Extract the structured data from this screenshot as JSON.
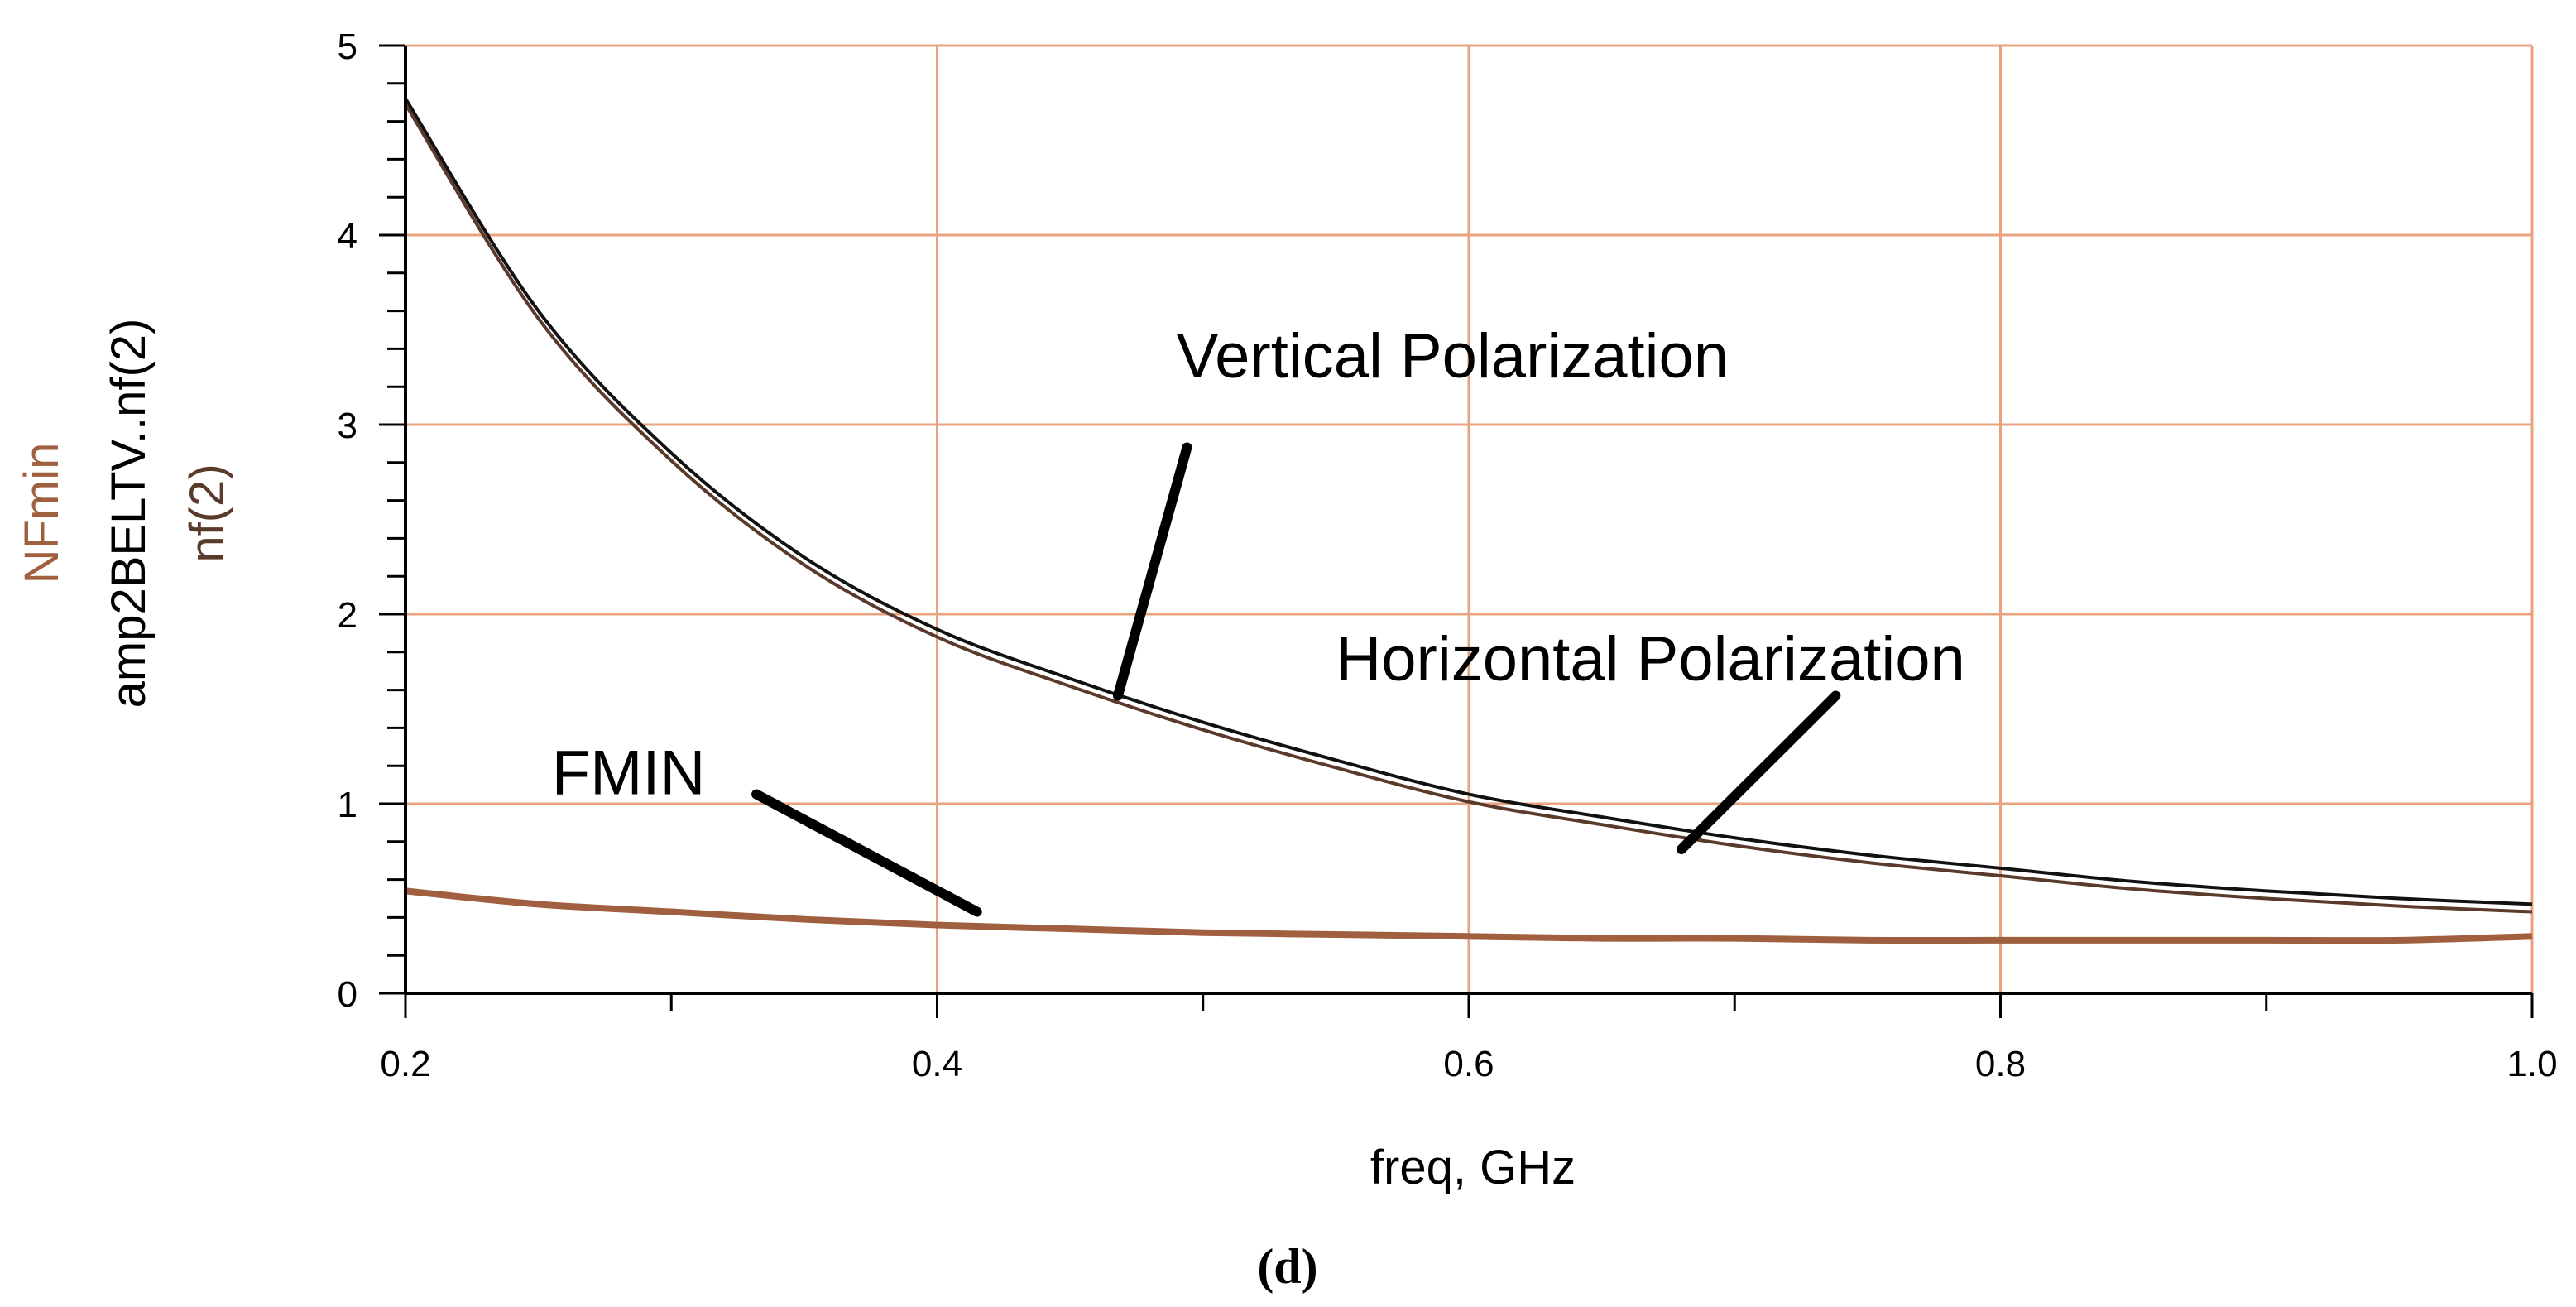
{
  "chart_data": {
    "type": "line",
    "title": "",
    "caption": "(d)",
    "xlabel": "freq, GHz",
    "ylabels": [
      {
        "text": "NFmin",
        "color": "#a0603f"
      },
      {
        "text": "amp2BELTV..nf(2)",
        "color": "#000000"
      },
      {
        "text": "nf(2)",
        "color": "#5a3a2a"
      }
    ],
    "xlim": [
      0.2,
      1.0
    ],
    "ylim": [
      0,
      5
    ],
    "x_ticks": [
      "0.2",
      "0.4",
      "0.6",
      "0.8",
      "1.0"
    ],
    "x_tick_values": [
      0.2,
      0.4,
      0.6,
      0.8,
      1.0
    ],
    "y_ticks": [
      "0",
      "1",
      "2",
      "3",
      "4",
      "5"
    ],
    "y_tick_values": [
      0,
      1,
      2,
      3,
      4,
      5
    ],
    "grid": true,
    "colors": {
      "grid": "#e8a27e",
      "axes": "#000000",
      "nfmin": "#a0603f",
      "vertical": "#111111",
      "horizontal": "#5a3a2a",
      "pointer": "#000000"
    },
    "series": [
      {
        "name": "amp2BELTV..nf(2)",
        "x": [
          0.2,
          0.25,
          0.3,
          0.35,
          0.4,
          0.45,
          0.5,
          0.55,
          0.6,
          0.65,
          0.7,
          0.75,
          0.8,
          0.85,
          0.9,
          0.95,
          1.0
        ],
        "values": [
          4.72,
          3.6,
          2.85,
          2.3,
          1.92,
          1.66,
          1.43,
          1.23,
          1.05,
          0.93,
          0.82,
          0.73,
          0.66,
          0.59,
          0.54,
          0.5,
          0.47
        ]
      },
      {
        "name": "nf(2)",
        "x": [
          0.2,
          0.25,
          0.3,
          0.35,
          0.4,
          0.45,
          0.5,
          0.55,
          0.6,
          0.65,
          0.7,
          0.75,
          0.8,
          0.85,
          0.9,
          0.95,
          1.0
        ],
        "values": [
          4.69,
          3.56,
          2.81,
          2.26,
          1.88,
          1.62,
          1.39,
          1.19,
          1.01,
          0.89,
          0.78,
          0.69,
          0.62,
          0.55,
          0.5,
          0.46,
          0.43
        ]
      },
      {
        "name": "NFmin",
        "x": [
          0.2,
          0.25,
          0.3,
          0.35,
          0.4,
          0.45,
          0.5,
          0.55,
          0.6,
          0.65,
          0.7,
          0.75,
          0.8,
          0.85,
          0.9,
          0.95,
          1.0
        ],
        "values": [
          0.54,
          0.47,
          0.43,
          0.39,
          0.36,
          0.34,
          0.32,
          0.31,
          0.3,
          0.29,
          0.29,
          0.28,
          0.28,
          0.28,
          0.28,
          0.28,
          0.3
        ]
      }
    ],
    "annotations": [
      {
        "text": "Vertical Polarization",
        "label_x": 0.49,
        "label_y": 3.25,
        "target_x": 0.468,
        "target_y": 1.57
      },
      {
        "text": "Horizontal Polarization",
        "label_x": 0.55,
        "label_y": 1.65,
        "target_x": 0.68,
        "target_y": 0.76
      },
      {
        "text": "FMIN",
        "label_x": 0.255,
        "label_y": 1.05,
        "target_x": 0.415,
        "target_y": 0.43
      }
    ]
  }
}
